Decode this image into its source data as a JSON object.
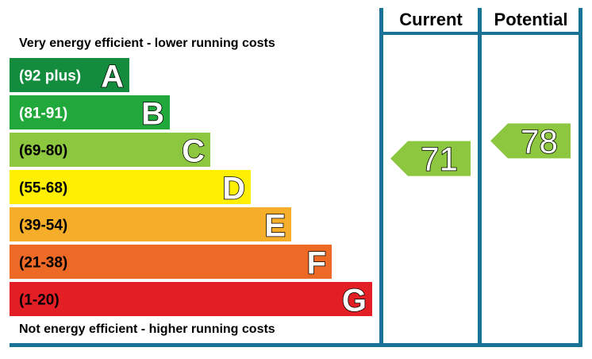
{
  "chart_data": {
    "type": "bar",
    "top_caption": "Very energy efficient - lower running costs",
    "bottom_caption": "Not energy efficient - higher running costs",
    "columns": {
      "current": "Current",
      "potential": "Potential"
    },
    "bands": [
      {
        "range": "(92 plus)",
        "letter": "A",
        "min": 92,
        "max": 100,
        "color": "#138c3e",
        "text_color": "#ffffff"
      },
      {
        "range": "(81-91)",
        "letter": "B",
        "min": 81,
        "max": 91,
        "color": "#21a83a",
        "text_color": "#ffffff"
      },
      {
        "range": "(69-80)",
        "letter": "C",
        "min": 69,
        "max": 80,
        "color": "#8dc63f",
        "text_color": "#000000"
      },
      {
        "range": "(55-68)",
        "letter": "D",
        "min": 55,
        "max": 68,
        "color": "#ffef00",
        "text_color": "#000000"
      },
      {
        "range": "(39-54)",
        "letter": "E",
        "min": 39,
        "max": 54,
        "color": "#f6ae2a",
        "text_color": "#000000"
      },
      {
        "range": "(21-38)",
        "letter": "F",
        "min": 21,
        "max": 38,
        "color": "#ec6a26",
        "text_color": "#000000"
      },
      {
        "range": "(1-20)",
        "letter": "G",
        "min": 1,
        "max": 20,
        "color": "#e31e25",
        "text_color": "#000000"
      }
    ],
    "current": {
      "value": "71",
      "band": "C",
      "color": "#8dc63f"
    },
    "potential": {
      "value": "78",
      "band": "C",
      "color": "#8dc63f"
    },
    "frame_color": "#1a7297"
  }
}
